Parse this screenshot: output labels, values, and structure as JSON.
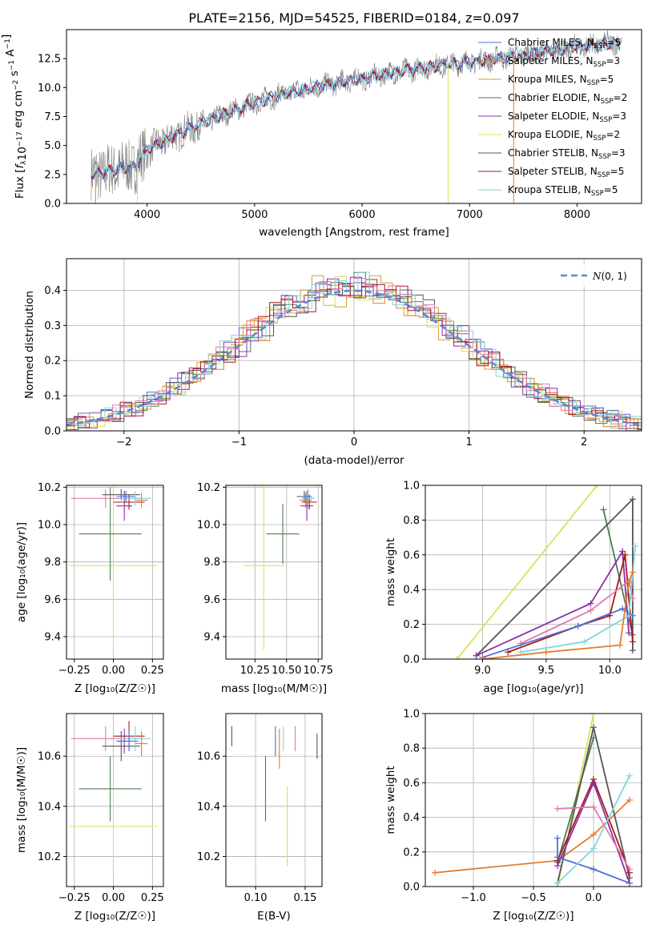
{
  "colors": {
    "chabrier_miles": "#4f6fd6",
    "salpeter_miles": "#e37c2e",
    "kroupa_miles": "#d99a2b",
    "chabrier_elodie": "#4e7d52",
    "salpeter_elodie": "#8b2fa8",
    "kroupa_elodie": "#d6e35a",
    "chabrier_stelib": "#555555",
    "salpeter_stelib": "#a51a1a",
    "kroupa_stelib": "#7fd6de",
    "pink": "#e07aab",
    "gray_spec": "#808080"
  },
  "legend": [
    {
      "label": "Chabrier MILES, N",
      "sub": "SSP",
      "tail": "=5",
      "color": "#4f6fd6"
    },
    {
      "label": "Salpeter MILES, N",
      "sub": "SSP",
      "tail": "=3",
      "color": "#e37c2e"
    },
    {
      "label": "Kroupa MILES, N",
      "sub": "SSP",
      "tail": "=5",
      "color": "#d99a2b"
    },
    {
      "label": "Chabrier ELODIE, N",
      "sub": "SSP",
      "tail": "=2",
      "color": "#4e7d52"
    },
    {
      "label": "Salpeter ELODIE, N",
      "sub": "SSP",
      "tail": "=3",
      "color": "#8b2fa8"
    },
    {
      "label": "Kroupa ELODIE, N",
      "sub": "SSP",
      "tail": "=2",
      "color": "#d6e35a"
    },
    {
      "label": "Chabrier STELIB, N",
      "sub": "SSP",
      "tail": "=3",
      "color": "#555555"
    },
    {
      "label": "Salpeter STELIB, N",
      "sub": "SSP",
      "tail": "=5",
      "color": "#a51a1a"
    },
    {
      "label": "Kroupa STELIB, N",
      "sub": "SSP",
      "tail": "=5",
      "color": "#7fd6de"
    }
  ],
  "chart_data": [
    {
      "id": "spectrum",
      "type": "line",
      "title": "PLATE=2156, MJD=54525, FIBERID=0184, z=0.097",
      "xlabel": "wavelength [Angstrom, rest frame]",
      "ylabel": "Flux [f_λ 10^-17 erg cm^-2 s^-1 A^-1]",
      "xlim": [
        3250,
        8600
      ],
      "ylim": [
        0,
        15
      ],
      "xticks": [
        "4000",
        "5000",
        "6000",
        "7000",
        "8000"
      ],
      "yticks": [
        "0.0",
        "2.5",
        "5.0",
        "7.5",
        "10.0",
        "12.5"
      ],
      "continuum": {
        "x": [
          3500,
          3700,
          3900,
          4000,
          4200,
          4500,
          4800,
          5000,
          5300,
          5600,
          5900,
          6200,
          6500,
          6800,
          7100,
          7400,
          7700,
          8000,
          8300,
          8400
        ],
        "y": [
          2.5,
          2.9,
          3.3,
          4.6,
          5.6,
          6.9,
          8.0,
          8.7,
          9.5,
          10.1,
          10.6,
          11.1,
          11.6,
          12.0,
          12.3,
          12.7,
          13.1,
          13.5,
          13.8,
          13.9
        ]
      }
    },
    {
      "id": "residuals",
      "type": "bar",
      "xlabel": "(data-model)/error",
      "ylabel": "Normed distribution",
      "xlim": [
        -2.5,
        2.5
      ],
      "ylim": [
        0,
        0.49
      ],
      "xticks": [
        "−2",
        "−1",
        "0",
        "1",
        "2"
      ],
      "yticks": [
        "0.0",
        "0.1",
        "0.2",
        "0.3",
        "0.4"
      ],
      "gaussian_label": "N(0,1)"
    },
    {
      "id": "age_vs_z",
      "type": "scatter",
      "xlabel": "Z [log10(Z/Z☉)]",
      "ylabel": "age  [log10(age/yr)]",
      "xlim": [
        -0.3,
        0.32
      ],
      "ylim": [
        9.28,
        10.21
      ],
      "xticks": [
        "−0.25",
        "0.00",
        "0.25"
      ],
      "yticks": [
        "9.4",
        "9.6",
        "9.8",
        "10.0",
        "10.2"
      ],
      "points": [
        {
          "x": 0.0,
          "y": 9.78,
          "xerr": 0.28,
          "yerr": 0.45,
          "series": "kroupa_elodie"
        },
        {
          "x": -0.02,
          "y": 9.95,
          "xerr": 0.2,
          "yerr": 0.25,
          "series": "chabrier_elodie"
        },
        {
          "x": -0.05,
          "y": 10.14,
          "xerr": 0.22,
          "yerr": 0.05,
          "series": "pink"
        },
        {
          "x": 0.07,
          "y": 10.1,
          "xerr": 0.05,
          "yerr": 0.08,
          "series": "salpeter_elodie"
        },
        {
          "x": 0.1,
          "y": 10.12,
          "xerr": 0.1,
          "yerr": 0.04,
          "series": "salpeter_stelib"
        },
        {
          "x": 0.05,
          "y": 10.16,
          "xerr": 0.12,
          "yerr": 0.03,
          "series": "chabrier_stelib"
        },
        {
          "x": 0.14,
          "y": 10.14,
          "xerr": 0.1,
          "yerr": 0.04,
          "series": "kroupa_stelib"
        },
        {
          "x": 0.08,
          "y": 10.15,
          "xerr": 0.06,
          "yerr": 0.03,
          "series": "chabrier_miles"
        },
        {
          "x": 0.18,
          "y": 10.13,
          "xerr": 0.04,
          "yerr": 0.04,
          "series": "salpeter_miles"
        }
      ]
    },
    {
      "id": "age_vs_mass",
      "type": "scatter",
      "xlabel": "mass [log10(M/M☉)]",
      "ylabel": "",
      "xlim": [
        10.02,
        10.78
      ],
      "ylim": [
        9.28,
        10.21
      ],
      "xticks": [
        "10.25",
        "10.50",
        "10.75"
      ],
      "yticks": [
        "9.4",
        "9.6",
        "9.8",
        "10.0",
        "10.2"
      ],
      "points": [
        {
          "x": 10.32,
          "y": 9.78,
          "xerr": 0.16,
          "yerr": 0.45,
          "series": "kroupa_elodie"
        },
        {
          "x": 10.47,
          "y": 9.95,
          "xerr": 0.13,
          "yerr": 0.16,
          "series": "chabrier_elodie"
        },
        {
          "x": 10.67,
          "y": 10.14,
          "xerr": 0.05,
          "yerr": 0.05,
          "series": "pink"
        },
        {
          "x": 10.66,
          "y": 10.1,
          "xerr": 0.05,
          "yerr": 0.08,
          "series": "salpeter_elodie"
        },
        {
          "x": 10.68,
          "y": 10.12,
          "xerr": 0.06,
          "yerr": 0.04,
          "series": "salpeter_stelib"
        },
        {
          "x": 10.64,
          "y": 10.15,
          "xerr": 0.06,
          "yerr": 0.03,
          "series": "chabrier_stelib"
        },
        {
          "x": 10.67,
          "y": 10.14,
          "xerr": 0.05,
          "yerr": 0.04,
          "series": "kroupa_stelib"
        },
        {
          "x": 10.66,
          "y": 10.15,
          "xerr": 0.04,
          "yerr": 0.03,
          "series": "chabrier_miles"
        },
        {
          "x": 10.65,
          "y": 10.13,
          "xerr": 0.05,
          "yerr": 0.04,
          "series": "salpeter_miles"
        }
      ]
    },
    {
      "id": "weight_vs_age",
      "type": "line",
      "xlabel": "age  [log10(age/yr)]",
      "ylabel": "mass weight",
      "xlim": [
        8.55,
        10.25
      ],
      "ylim": [
        0,
        1.0
      ],
      "xticks": [
        "9.0",
        "9.5",
        "10.0"
      ],
      "yticks": [
        "0.0",
        "0.2",
        "0.4",
        "0.6",
        "0.8",
        "1.0"
      ],
      "series": [
        {
          "name": "kroupa_elodie",
          "x": [
            8.8,
            9.9
          ],
          "y": [
            0.0,
            1.0
          ]
        },
        {
          "name": "chabrier_elodie",
          "x": [
            9.95,
            10.18
          ],
          "y": [
            0.86,
            0.14
          ]
        },
        {
          "name": "chabrier_stelib",
          "x": [
            8.95,
            10.18,
            10.18
          ],
          "y": [
            0.02,
            0.92,
            0.05
          ]
        },
        {
          "name": "salpeter_elodie",
          "x": [
            8.95,
            9.85,
            10.1,
            10.15
          ],
          "y": [
            0.02,
            0.32,
            0.62,
            0.15
          ]
        },
        {
          "name": "salpeter_stelib",
          "x": [
            9.2,
            9.75,
            10.0,
            10.12,
            10.18
          ],
          "y": [
            0.04,
            0.19,
            0.25,
            0.6,
            0.1
          ]
        },
        {
          "name": "pink",
          "x": [
            9.3,
            9.85,
            10.15,
            10.18
          ],
          "y": [
            0.09,
            0.28,
            0.45,
            0.35
          ]
        },
        {
          "name": "chabrier_miles",
          "x": [
            9.0,
            9.75,
            10.1,
            10.18
          ],
          "y": [
            0.01,
            0.19,
            0.29,
            0.25
          ]
        },
        {
          "name": "kroupa_stelib",
          "x": [
            9.3,
            9.8,
            10.15,
            10.2
          ],
          "y": [
            0.04,
            0.1,
            0.25,
            0.65
          ]
        },
        {
          "name": "salpeter_miles",
          "x": [
            9.0,
            9.5,
            10.08,
            10.15,
            10.18
          ],
          "y": [
            0.0,
            0.04,
            0.08,
            0.44,
            0.5
          ]
        }
      ]
    },
    {
      "id": "mass_vs_z",
      "type": "scatter",
      "xlabel": "Z [log10(Z/Z☉)]",
      "ylabel": "mass [log10(M/M☉)]",
      "xlim": [
        -0.3,
        0.32
      ],
      "ylim": [
        10.08,
        10.77
      ],
      "xticks": [
        "−0.25",
        "0.00",
        "0.25"
      ],
      "yticks": [
        "10.2",
        "10.4",
        "10.6"
      ],
      "points": [
        {
          "x": 0.0,
          "y": 10.32,
          "xerr": 0.28,
          "yerr": 0.16,
          "series": "kroupa_elodie"
        },
        {
          "x": -0.02,
          "y": 10.47,
          "xerr": 0.2,
          "yerr": 0.13,
          "series": "chabrier_elodie"
        },
        {
          "x": -0.05,
          "y": 10.67,
          "xerr": 0.22,
          "yerr": 0.05,
          "series": "pink"
        },
        {
          "x": 0.07,
          "y": 10.66,
          "xerr": 0.05,
          "yerr": 0.05,
          "series": "salpeter_elodie"
        },
        {
          "x": 0.1,
          "y": 10.68,
          "xerr": 0.1,
          "yerr": 0.06,
          "series": "salpeter_stelib"
        },
        {
          "x": 0.05,
          "y": 10.64,
          "xerr": 0.12,
          "yerr": 0.06,
          "series": "chabrier_stelib"
        },
        {
          "x": 0.14,
          "y": 10.67,
          "xerr": 0.1,
          "yerr": 0.05,
          "series": "kroupa_stelib"
        },
        {
          "x": 0.1,
          "y": 10.66,
          "xerr": 0.06,
          "yerr": 0.04,
          "series": "chabrier_miles"
        },
        {
          "x": 0.18,
          "y": 10.65,
          "xerr": 0.04,
          "yerr": 0.05,
          "series": "salpeter_miles"
        }
      ]
    },
    {
      "id": "mass_vs_ebv",
      "type": "scatter",
      "xlabel": "E(B-V)",
      "ylabel": "",
      "xlim": [
        0.07,
        0.167
      ],
      "ylim": [
        10.08,
        10.77
      ],
      "xticks": [
        "0.10",
        "0.15"
      ],
      "yticks": [
        "10.2",
        "10.4",
        "10.6"
      ],
      "points": [
        {
          "x": 0.076,
          "y": 10.68,
          "yerr": 0.04,
          "series": "salpeter_elodie"
        },
        {
          "x": 0.11,
          "y": 10.47,
          "yerr": 0.13,
          "series": "chabrier_elodie"
        },
        {
          "x": 0.12,
          "y": 10.66,
          "yerr": 0.06,
          "series": "chabrier_miles"
        },
        {
          "x": 0.124,
          "y": 10.63,
          "yerr": 0.08,
          "series": "salpeter_miles"
        },
        {
          "x": 0.128,
          "y": 10.67,
          "yerr": 0.05,
          "series": "kroupa_stelib"
        },
        {
          "x": 0.132,
          "y": 10.32,
          "yerr": 0.16,
          "series": "kroupa_elodie"
        },
        {
          "x": 0.14,
          "y": 10.67,
          "yerr": 0.05,
          "series": "pink"
        },
        {
          "x": 0.162,
          "y": 10.64,
          "yerr": 0.05,
          "series": "chabrier_stelib"
        }
      ]
    },
    {
      "id": "weight_vs_z",
      "type": "line",
      "xlabel": "Z [log10(Z/Z☉)]",
      "ylabel": "mass weight",
      "xlim": [
        -1.4,
        0.4
      ],
      "ylim": [
        0,
        1.0
      ],
      "xticks": [
        "−1.0",
        "−0.5",
        "0.0"
      ],
      "yticks": [
        "0.0",
        "0.2",
        "0.4",
        "0.6",
        "0.8",
        "1.0"
      ],
      "series": [
        {
          "name": "salpeter_miles",
          "x": [
            -1.32,
            -0.3,
            0.0,
            0.3
          ],
          "y": [
            0.08,
            0.15,
            0.3,
            0.5
          ]
        },
        {
          "name": "kroupa_elodie",
          "x": [
            -0.3,
            0.0
          ],
          "y": [
            0.0,
            1.0
          ]
        },
        {
          "name": "chabrier_elodie",
          "x": [
            -0.3,
            0.0
          ],
          "y": [
            0.14,
            0.86
          ]
        },
        {
          "name": "chabrier_stelib",
          "x": [
            -0.3,
            0.0,
            0.3
          ],
          "y": [
            0.02,
            0.92,
            0.05
          ]
        },
        {
          "name": "salpeter_stelib",
          "x": [
            -0.3,
            0.0,
            0.3
          ],
          "y": [
            0.15,
            0.62,
            0.08
          ]
        },
        {
          "name": "salpeter_elodie",
          "x": [
            -0.3,
            0.0,
            0.3
          ],
          "y": [
            0.12,
            0.6,
            0.02
          ]
        },
        {
          "name": "pink",
          "x": [
            -0.3,
            0.0,
            0.3
          ],
          "y": [
            0.45,
            0.46,
            0.1
          ]
        },
        {
          "name": "chabrier_miles",
          "x": [
            -0.3,
            -0.3,
            0.0,
            0.3
          ],
          "y": [
            0.28,
            0.17,
            0.1,
            0.02
          ]
        },
        {
          "name": "kroupa_stelib",
          "x": [
            -0.3,
            0.0,
            0.3
          ],
          "y": [
            0.02,
            0.22,
            0.64
          ]
        }
      ]
    }
  ]
}
